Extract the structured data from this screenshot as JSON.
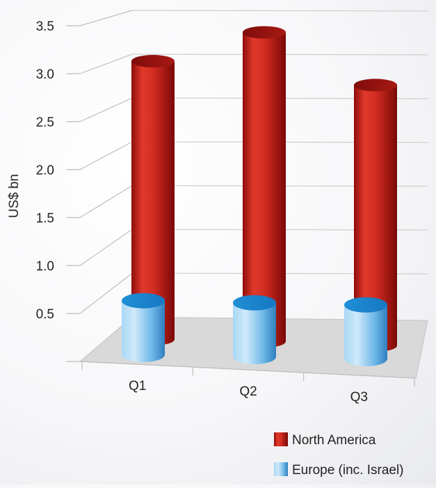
{
  "chart_data": {
    "type": "bar",
    "style": "3d-cylinder",
    "categories": [
      "Q1",
      "Q2",
      "Q3"
    ],
    "series": [
      {
        "name": "North America",
        "values": [
          3.15,
          3.5,
          2.95
        ],
        "color": "#c8231b"
      },
      {
        "name": "Europe (inc. Israel)",
        "values": [
          0.45,
          0.45,
          0.45
        ],
        "color": "#3f9bd8"
      }
    ],
    "ylabel": "US$ bn",
    "xlabel": "",
    "ylim": [
      0,
      3.5
    ],
    "yticks": [
      "3.5",
      "3.0",
      "2.5",
      "2.0",
      "1.5",
      "1.0",
      "0.5"
    ],
    "grid": true,
    "legend_position": "bottom-right"
  }
}
